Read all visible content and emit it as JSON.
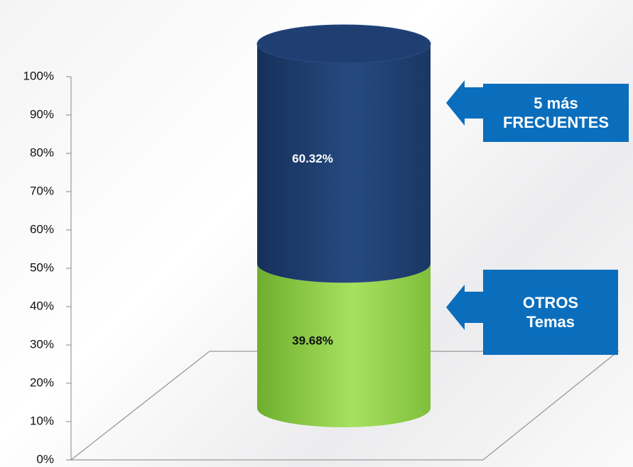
{
  "chart_data": {
    "type": "bar",
    "stacked": true,
    "categories": [
      null
    ],
    "series": [
      {
        "name": "OTROS Temas",
        "color": "#8fd14f",
        "values": [
          39.68
        ],
        "value_labels": [
          "39.68%"
        ]
      },
      {
        "name": "5 más FRECUENTES",
        "color": "#1f3f73",
        "values": [
          60.32
        ],
        "value_labels": [
          "60.32%"
        ]
      }
    ],
    "ylim": [
      0,
      100
    ],
    "yticks": [
      {
        "value": 0,
        "label": "0%"
      },
      {
        "value": 10,
        "label": "10%"
      },
      {
        "value": 20,
        "label": "20%"
      },
      {
        "value": 30,
        "label": "30%"
      },
      {
        "value": 40,
        "label": "40%"
      },
      {
        "value": 50,
        "label": "50%"
      },
      {
        "value": 60,
        "label": "60%"
      },
      {
        "value": 70,
        "label": "70%"
      },
      {
        "value": 80,
        "label": "80%"
      },
      {
        "value": 90,
        "label": "90%"
      },
      {
        "value": 100,
        "label": "100%"
      }
    ]
  }
}
